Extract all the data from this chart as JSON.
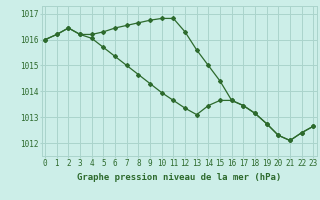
{
  "title": "Graphe pression niveau de la mer (hPa)",
  "background_color": "#cceee8",
  "line_color": "#2d6a2d",
  "grid_color": "#aad4cc",
  "hours": [
    0,
    1,
    2,
    3,
    4,
    5,
    6,
    7,
    8,
    9,
    10,
    11,
    12,
    13,
    14,
    15,
    16,
    17,
    18,
    19,
    20,
    21,
    22,
    23
  ],
  "line1": [
    1016.0,
    1016.2,
    1016.45,
    1016.2,
    1016.2,
    1016.3,
    1016.45,
    1016.55,
    1016.65,
    1016.75,
    1016.82,
    1016.82,
    1016.3,
    1015.6,
    1015.0,
    1014.4,
    1013.65,
    1013.45,
    1013.15,
    1012.75,
    1012.3,
    1012.1,
    1012.4,
    1012.65
  ],
  "line2": [
    1016.0,
    1016.2,
    1016.45,
    1016.2,
    1016.05,
    1015.7,
    1015.35,
    1015.0,
    1014.65,
    1014.3,
    1013.95,
    1013.65,
    1013.35,
    1013.1,
    1013.45,
    1013.65,
    1013.65,
    1013.45,
    1013.15,
    1012.75,
    1012.3,
    1012.1,
    1012.4,
    1012.65
  ],
  "ylim_min": 1011.5,
  "ylim_max": 1017.3,
  "yticks": [
    1012,
    1013,
    1014,
    1015,
    1016,
    1017
  ],
  "tick_fontsize": 5.5,
  "title_fontsize": 6.5
}
